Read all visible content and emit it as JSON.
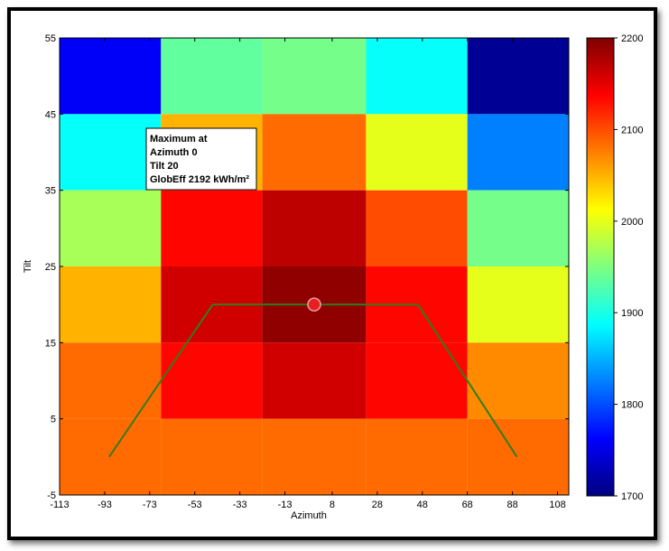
{
  "chart_data": {
    "type": "heatmap",
    "xlabel": "Azimuth",
    "ylabel": "Tilt",
    "x_ticks": [
      -113,
      -93,
      -73,
      -53,
      -33,
      -13,
      8,
      28,
      48,
      68,
      88,
      108
    ],
    "y_ticks": [
      -5,
      5,
      15,
      25,
      35,
      45,
      55
    ],
    "xlim": [
      -113,
      113
    ],
    "ylim": [
      -5,
      55
    ],
    "colorbar": {
      "ticks": [
        1700,
        1800,
        1900,
        2000,
        2100,
        2200
      ],
      "range": [
        1700,
        2200
      ],
      "colormap": "jet"
    },
    "cells": [
      {
        "x0": -113,
        "x1": -68,
        "y0": 45,
        "y1": 55,
        "value": 1760
      },
      {
        "x0": -68,
        "x1": -23,
        "y0": 45,
        "y1": 55,
        "value": 1935
      },
      {
        "x0": -23,
        "x1": 23,
        "y0": 45,
        "y1": 55,
        "value": 1945
      },
      {
        "x0": 23,
        "x1": 68,
        "y0": 45,
        "y1": 55,
        "value": 1890
      },
      {
        "x0": 68,
        "x1": 113,
        "y0": 45,
        "y1": 55,
        "value": 1710
      },
      {
        "x0": -113,
        "x1": -68,
        "y0": 35,
        "y1": 45,
        "value": 1890
      },
      {
        "x0": -68,
        "x1": -23,
        "y0": 35,
        "y1": 45,
        "value": 2050
      },
      {
        "x0": -23,
        "x1": 23,
        "y0": 35,
        "y1": 45,
        "value": 2085
      },
      {
        "x0": 23,
        "x1": 68,
        "y0": 35,
        "y1": 45,
        "value": 2000
      },
      {
        "x0": 68,
        "x1": 113,
        "y0": 35,
        "y1": 45,
        "value": 1825
      },
      {
        "x0": -113,
        "x1": -68,
        "y0": 25,
        "y1": 35,
        "value": 1970
      },
      {
        "x0": -68,
        "x1": -23,
        "y0": 25,
        "y1": 35,
        "value": 2135
      },
      {
        "x0": -23,
        "x1": 23,
        "y0": 25,
        "y1": 35,
        "value": 2170
      },
      {
        "x0": 23,
        "x1": 68,
        "y0": 25,
        "y1": 35,
        "value": 2100
      },
      {
        "x0": 68,
        "x1": 113,
        "y0": 25,
        "y1": 35,
        "value": 1945
      },
      {
        "x0": -113,
        "x1": -68,
        "y0": 15,
        "y1": 25,
        "value": 2050
      },
      {
        "x0": -68,
        "x1": -23,
        "y0": 15,
        "y1": 25,
        "value": 2160
      },
      {
        "x0": -23,
        "x1": 23,
        "y0": 15,
        "y1": 25,
        "value": 2192
      },
      {
        "x0": 23,
        "x1": 68,
        "y0": 15,
        "y1": 25,
        "value": 2135
      },
      {
        "x0": 68,
        "x1": 113,
        "y0": 15,
        "y1": 25,
        "value": 2000
      },
      {
        "x0": -113,
        "x1": -68,
        "y0": 5,
        "y1": 15,
        "value": 2085
      },
      {
        "x0": -68,
        "x1": -23,
        "y0": 5,
        "y1": 15,
        "value": 2135
      },
      {
        "x0": -23,
        "x1": 23,
        "y0": 5,
        "y1": 15,
        "value": 2160
      },
      {
        "x0": 23,
        "x1": 68,
        "y0": 5,
        "y1": 15,
        "value": 2135
      },
      {
        "x0": 68,
        "x1": 113,
        "y0": 5,
        "y1": 15,
        "value": 2070
      },
      {
        "x0": -113,
        "x1": -68,
        "y0": -5,
        "y1": 5,
        "value": 2085
      },
      {
        "x0": -68,
        "x1": -23,
        "y0": -5,
        "y1": 5,
        "value": 2085
      },
      {
        "x0": -23,
        "x1": 23,
        "y0": -5,
        "y1": 5,
        "value": 2085
      },
      {
        "x0": 23,
        "x1": 68,
        "y0": -5,
        "y1": 5,
        "value": 2085
      },
      {
        "x0": 68,
        "x1": 113,
        "y0": -5,
        "y1": 5,
        "value": 2085
      }
    ],
    "envelope": {
      "color": "#2e7d1e",
      "points": [
        [
          -91,
          0
        ],
        [
          -45,
          20
        ],
        [
          46,
          20
        ],
        [
          90,
          0
        ]
      ]
    },
    "maximum_marker": {
      "x": 0,
      "y": 20,
      "color": "#e52020"
    },
    "annotation": {
      "lines": [
        "Maximum at",
        "Azimuth 0",
        "Tilt 20",
        "GlobEff 2192 kWh/m²"
      ]
    }
  }
}
